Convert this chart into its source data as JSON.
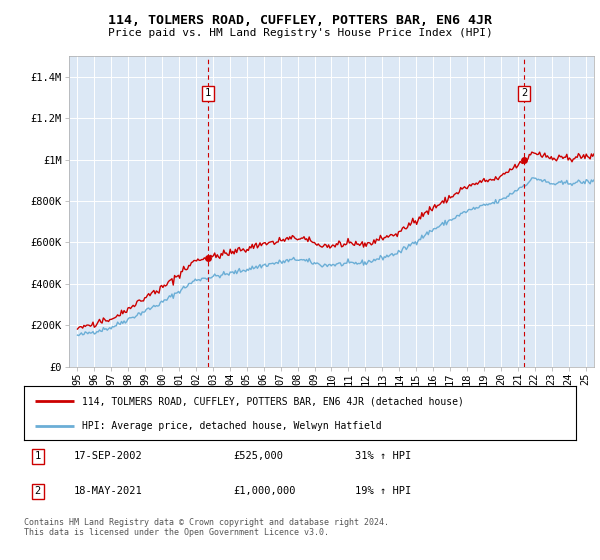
{
  "title": "114, TOLMERS ROAD, CUFFLEY, POTTERS BAR, EN6 4JR",
  "subtitle": "Price paid vs. HM Land Registry's House Price Index (HPI)",
  "legend_line1": "114, TOLMERS ROAD, CUFFLEY, POTTERS BAR, EN6 4JR (detached house)",
  "legend_line2": "HPI: Average price, detached house, Welwyn Hatfield",
  "annotation1": {
    "label": "1",
    "date": "17-SEP-2002",
    "price": "£525,000",
    "hpi": "31% ↑ HPI",
    "x_year": 2002.72,
    "y_val": 525000
  },
  "annotation2": {
    "label": "2",
    "date": "18-MAY-2021",
    "price": "£1,000,000",
    "hpi": "19% ↑ HPI",
    "x_year": 2021.38,
    "y_val": 1000000
  },
  "footer": "Contains HM Land Registry data © Crown copyright and database right 2024.\nThis data is licensed under the Open Government Licence v3.0.",
  "hpi_color": "#6baed6",
  "price_color": "#cc0000",
  "plot_bg": "#dce8f5",
  "ylim": [
    0,
    1500000
  ],
  "yticks": [
    0,
    200000,
    400000,
    600000,
    800000,
    1000000,
    1200000,
    1400000
  ],
  "ytick_labels": [
    "£0",
    "£200K",
    "£400K",
    "£600K",
    "£800K",
    "£1M",
    "£1.2M",
    "£1.4M"
  ],
  "xlim": [
    1994.5,
    2025.5
  ],
  "xticks": [
    1995,
    1996,
    1997,
    1998,
    1999,
    2000,
    2001,
    2002,
    2003,
    2004,
    2005,
    2006,
    2007,
    2008,
    2009,
    2010,
    2011,
    2012,
    2013,
    2014,
    2015,
    2016,
    2017,
    2018,
    2019,
    2020,
    2021,
    2022,
    2023,
    2024,
    2025
  ]
}
